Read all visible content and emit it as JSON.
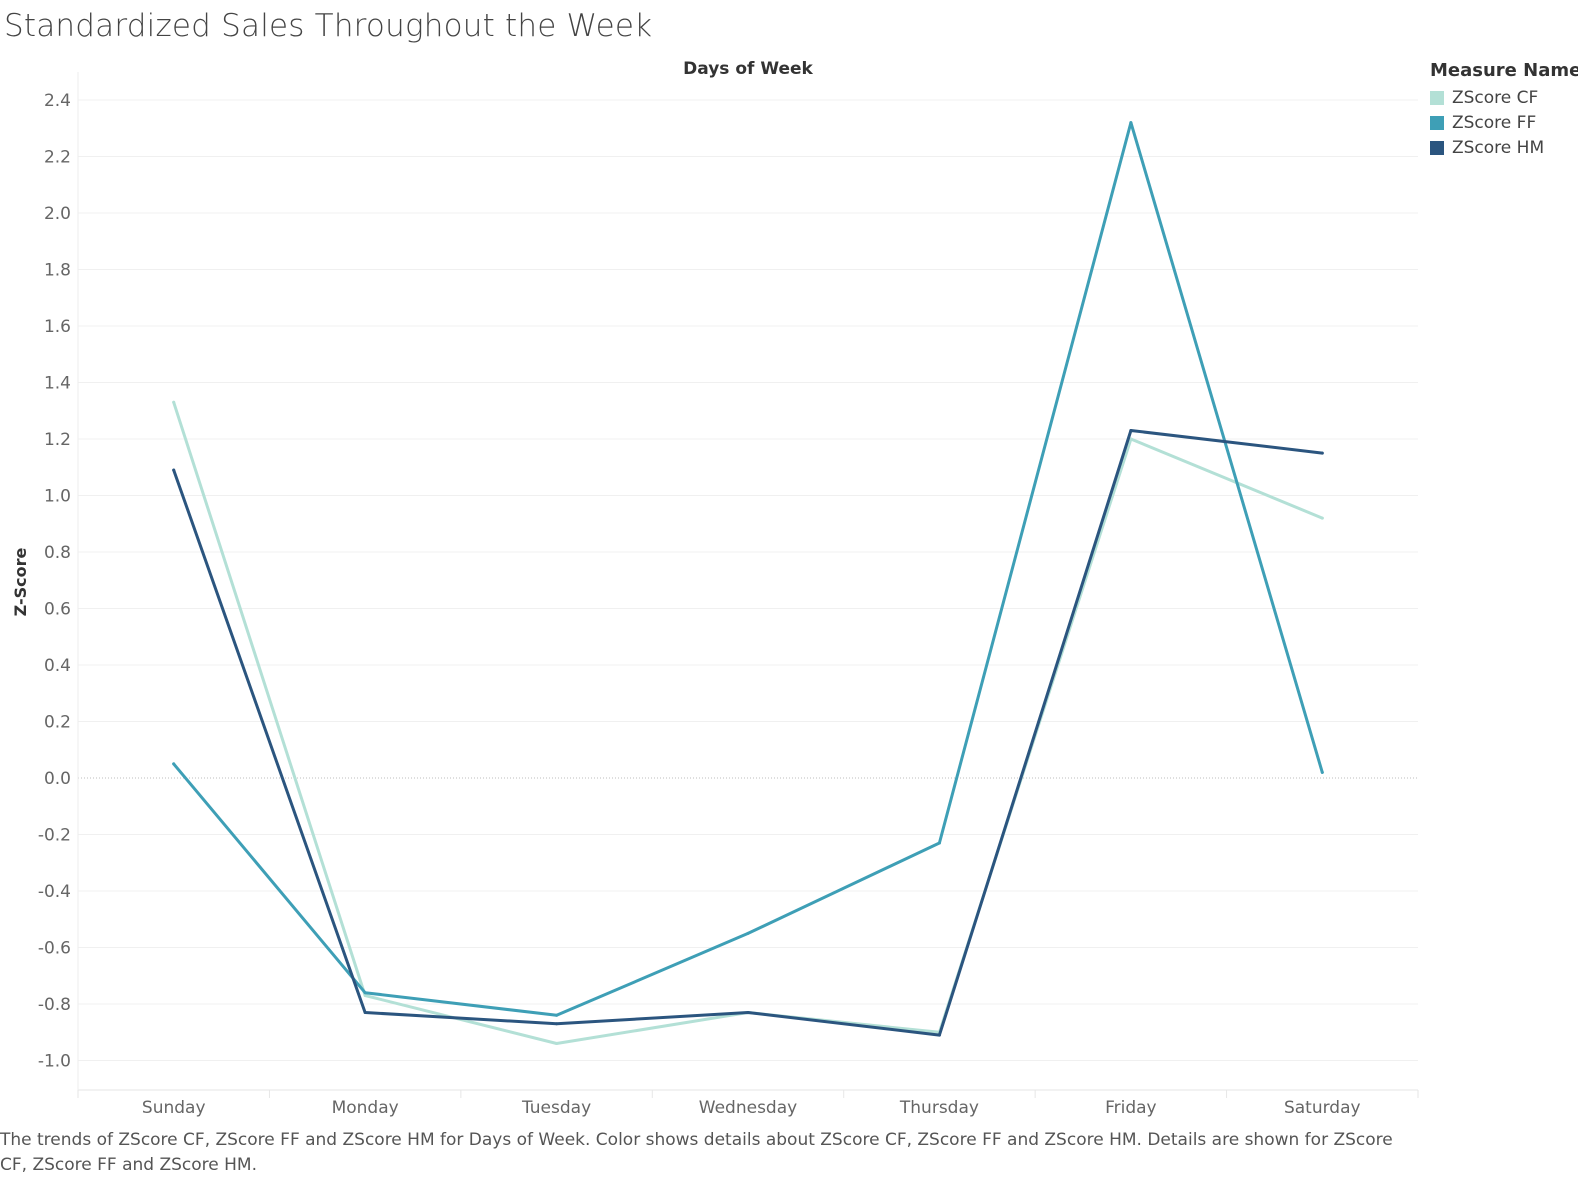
{
  "title": "Standardized Sales Throughout the Week",
  "caption": "The trends of ZScore CF, ZScore FF and ZScore HM for Days of Week.  Color shows details about ZScore CF, ZScore FF and ZScore HM.  Details are shown for ZScore CF, ZScore FF and ZScore HM.",
  "legend": {
    "title": "Measure Names",
    "items": [
      {
        "label": "ZScore CF",
        "color": "#b3e0d6"
      },
      {
        "label": "ZScore FF",
        "color": "#3e9fb6"
      },
      {
        "label": "ZScore HM",
        "color": "#2b557f"
      }
    ]
  },
  "chart_data": {
    "type": "line",
    "title": "Standardized Sales Throughout the Week",
    "xlabel": "Days of Week",
    "ylabel": "Z-Score",
    "categories": [
      "Sunday",
      "Monday",
      "Tuesday",
      "Wednesday",
      "Thursday",
      "Friday",
      "Saturday"
    ],
    "ylim": [
      -1.1,
      2.5
    ],
    "yticks": [
      "2.4",
      "2.2",
      "2.0",
      "1.8",
      "1.6",
      "1.4",
      "1.2",
      "1.0",
      "0.8",
      "0.6",
      "0.4",
      "0.2",
      "0.0",
      "-0.2",
      "-0.4",
      "-0.6",
      "-0.8",
      "-1.0"
    ],
    "grid": true,
    "legend_position": "right",
    "series": [
      {
        "name": "ZScore CF",
        "color": "#b3e0d6",
        "values": [
          1.33,
          -0.77,
          -0.94,
          -0.83,
          -0.9,
          1.2,
          0.92
        ]
      },
      {
        "name": "ZScore FF",
        "color": "#3e9fb6",
        "values": [
          0.05,
          -0.76,
          -0.84,
          -0.55,
          -0.23,
          2.32,
          0.02
        ]
      },
      {
        "name": "ZScore HM",
        "color": "#2b557f",
        "values": [
          1.09,
          -0.83,
          -0.87,
          -0.83,
          -0.91,
          1.23,
          1.15
        ]
      }
    ]
  }
}
